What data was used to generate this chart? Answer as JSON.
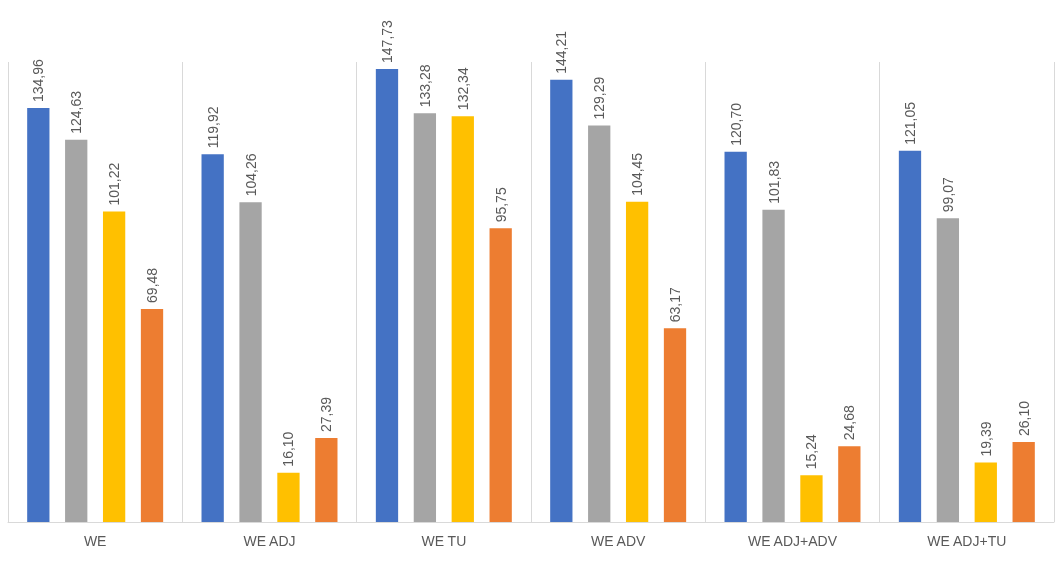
{
  "chart_data": {
    "type": "bar",
    "categories": [
      "WE",
      "WE ADJ",
      "WE TU",
      "WE ADV",
      "WE ADJ+ADV",
      "WE ADJ+TU"
    ],
    "series": [
      {
        "color": "#4472c4",
        "values": [
          134.96,
          119.92,
          147.73,
          144.21,
          120.7,
          121.05
        ],
        "value_labels": [
          "134,96",
          "119,92",
          "147,73",
          "144,21",
          "120,70",
          "121,05"
        ]
      },
      {
        "color": "#a5a5a5",
        "values": [
          124.63,
          104.26,
          133.28,
          129.29,
          101.83,
          99.07
        ],
        "value_labels": [
          "124,63",
          "104,26",
          "133,28",
          "129,29",
          "101,83",
          "99,07"
        ]
      },
      {
        "color": "#ffc000",
        "values": [
          101.22,
          16.1,
          132.34,
          104.45,
          15.24,
          19.39
        ],
        "value_labels": [
          "101,22",
          "16,10",
          "132,34",
          "104,45",
          "15,24",
          "19,39"
        ]
      },
      {
        "color": "#ed7d31",
        "values": [
          69.48,
          27.39,
          95.75,
          63.17,
          24.68,
          26.1
        ],
        "value_labels": [
          "69,48",
          "27,39",
          "95,75",
          "63,17",
          "24,68",
          "26,10"
        ]
      }
    ],
    "grid": "x"
  }
}
